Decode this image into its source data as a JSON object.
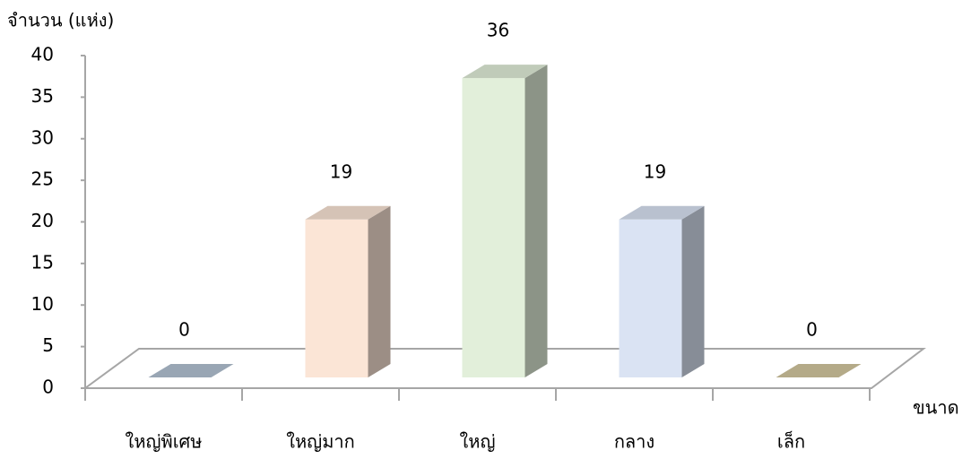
{
  "chart_data": {
    "type": "bar3d",
    "y_label": "จำนวน (แห่ง)",
    "x_label": "ขนาด",
    "categories": [
      "ใหญ่พิเศษ",
      "ใหญ่มาก",
      "ใหญ่",
      "กลาง",
      "เล็ก"
    ],
    "values": [
      0,
      19,
      36,
      19,
      0
    ],
    "colors": [
      "#b4c3d4",
      "#fbe5d6",
      "#e2efda",
      "#dae3f3",
      "#d4c8a0"
    ],
    "ylim": [
      0,
      40
    ],
    "yticks": [
      0,
      5,
      10,
      15,
      20,
      25,
      30,
      35,
      40
    ]
  }
}
